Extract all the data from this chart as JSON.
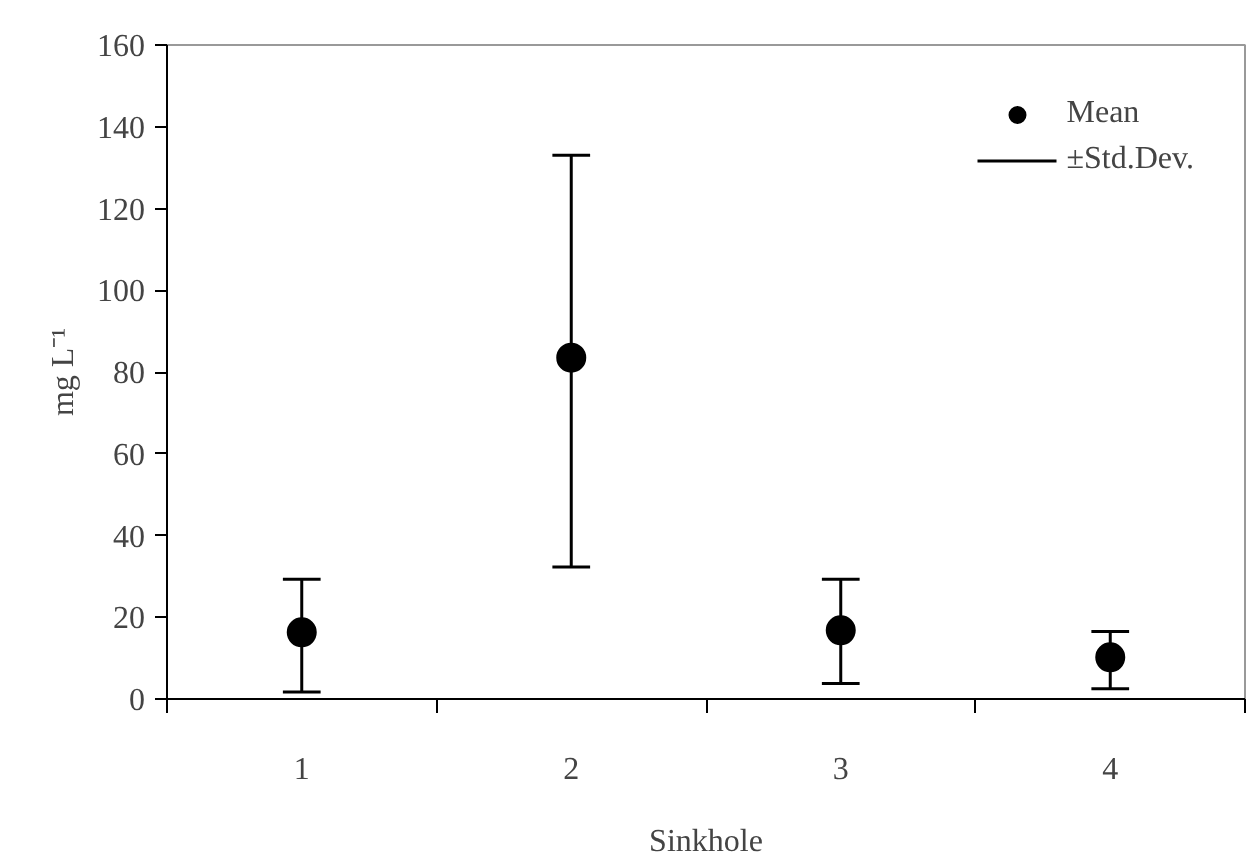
{
  "chart_data": {
    "type": "scatter",
    "xlabel": "Sinkhole",
    "ylabel": "mg L⁻¹",
    "categories": [
      "1",
      "2",
      "3",
      "4"
    ],
    "series": [
      {
        "name": "Mean",
        "color": "#000000",
        "values": [
          16.3,
          83.5,
          16.8,
          10.2
        ],
        "errors": [
          [
            1.7,
            29.3
          ],
          [
            32.3,
            133
          ],
          [
            3.8,
            29.3
          ],
          [
            2.5,
            16.5
          ]
        ]
      }
    ],
    "annotations": [
      "±Std.Dev."
    ],
    "ylim": [
      0,
      160
    ],
    "yticks": [
      0,
      20,
      40,
      60,
      80,
      100,
      120,
      140,
      160
    ],
    "marker": "circle",
    "legend": "top right",
    "grid": false
  }
}
